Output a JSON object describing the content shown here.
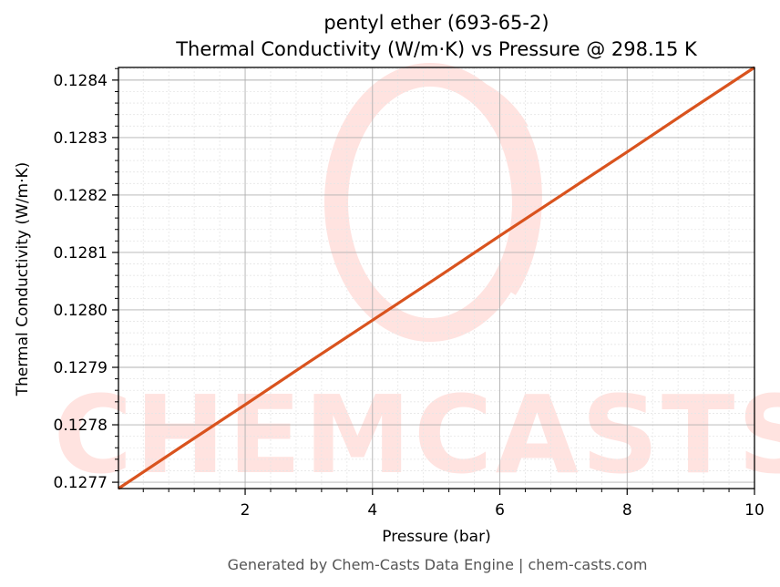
{
  "colors": {
    "line": "#d9531e",
    "grid_major": "#b0b0b0",
    "grid_minor": "#e6e6e6",
    "axes": "#000000",
    "watermark": "#ffe3e0",
    "footer": "#555555"
  },
  "watermark": {
    "text": "CHEMCASTS",
    "icon": "chemcasts-swirl-logo"
  },
  "footer": {
    "text": "Generated by Chem-Casts Data Engine | chem-casts.com"
  },
  "chart_data": {
    "type": "line",
    "title": "pentyl ether (693-65-2)",
    "subtitle": "Thermal Conductivity (W/m·K) vs Pressure @ 298.15 K",
    "xlabel": "Pressure (bar)",
    "ylabel": "Thermal Conductivity (W/m·K)",
    "xlim": [
      0.01,
      10
    ],
    "ylim": [
      0.127689,
      0.128422
    ],
    "x_ticks": [
      2,
      4,
      6,
      8,
      10
    ],
    "x_tick_labels": [
      "2",
      "4",
      "6",
      "8",
      "10"
    ],
    "y_ticks": [
      0.1277,
      0.1278,
      0.1279,
      0.128,
      0.1281,
      0.1282,
      0.1283,
      0.1284
    ],
    "y_tick_labels": [
      "0.1277",
      "0.1278",
      "0.1279",
      "0.1280",
      "0.1281",
      "0.1282",
      "0.1283",
      "0.1284"
    ],
    "grid": "major and minor",
    "series": [
      {
        "color": "#d9531e",
        "x": [
          0.01,
          1,
          2,
          3,
          4,
          5,
          6,
          7,
          8,
          9,
          10
        ],
        "y": [
          0.127689,
          0.127762,
          0.127835,
          0.127909,
          0.127982,
          0.128055,
          0.128129,
          0.128202,
          0.128275,
          0.128349,
          0.128422
        ]
      }
    ]
  }
}
